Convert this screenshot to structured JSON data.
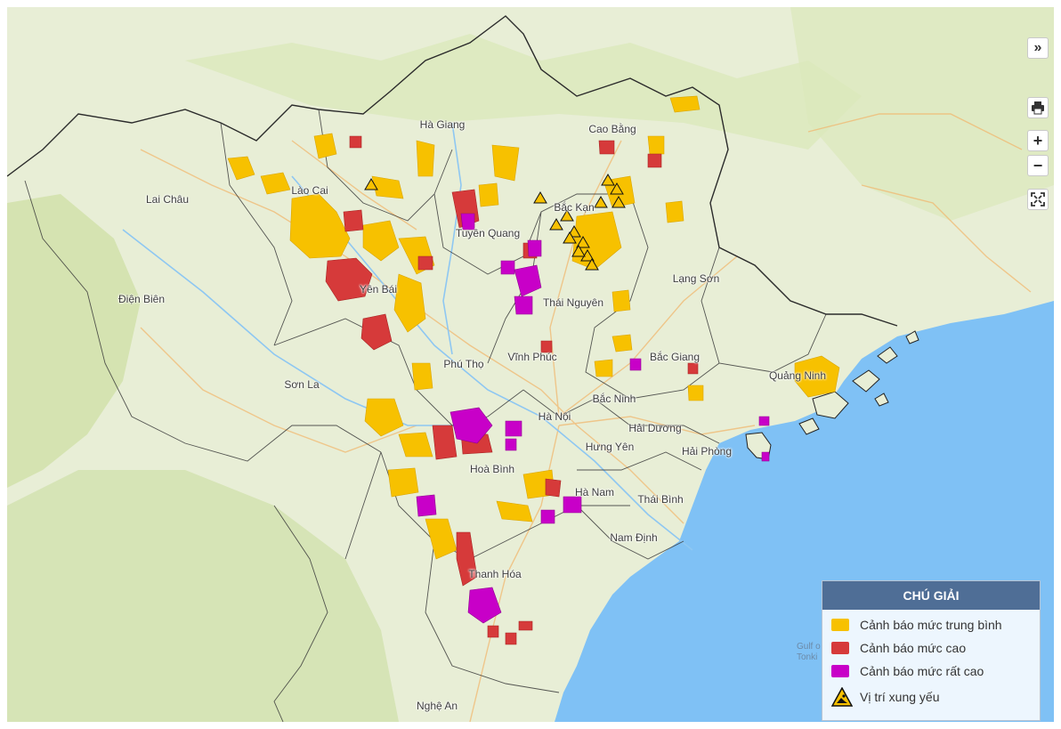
{
  "map": {
    "places": [
      {
        "name": "Hà Giang"
      },
      {
        "name": "Cao Bằng"
      },
      {
        "name": "Lai Châu"
      },
      {
        "name": "Lào Cai"
      },
      {
        "name": "Bắc Kạn"
      },
      {
        "name": "Tuyên Quang"
      },
      {
        "name": "Điện Biên"
      },
      {
        "name": "Lạng Sơn"
      },
      {
        "name": "Yên Bái"
      },
      {
        "name": "Thái Nguyên"
      },
      {
        "name": "Phú Thọ"
      },
      {
        "name": "Vĩnh Phúc"
      },
      {
        "name": "Bắc Giang"
      },
      {
        "name": "Quảng Ninh"
      },
      {
        "name": "Sơn La"
      },
      {
        "name": "Bắc Ninh"
      },
      {
        "name": "Hà Nội"
      },
      {
        "name": "Hải Dương"
      },
      {
        "name": "Hưng Yên"
      },
      {
        "name": "Hải Phòng"
      },
      {
        "name": "Hoà Bình"
      },
      {
        "name": "Hà Nam"
      },
      {
        "name": "Thái Bình"
      },
      {
        "name": "Nam Định"
      },
      {
        "name": "Thanh Hóa"
      },
      {
        "name": "Nghệ An"
      }
    ],
    "sea_label": {
      "line1": "Gulf o",
      "line2": "Tonki"
    }
  },
  "controls": {
    "expand_label": "»",
    "zoom_in_label": "+",
    "zoom_out_label": "−"
  },
  "legend": {
    "title": "CHÚ GIẢI",
    "items": [
      {
        "label": "Cảnh báo mức trung bình",
        "color": "#f7c100"
      },
      {
        "label": "Cảnh báo mức cao",
        "color": "#d63a3a"
      },
      {
        "label": "Cảnh báo mức rất cao",
        "color": "#c800c8"
      },
      {
        "label": "Vị trí xung yếu",
        "icon": "landslide-warning-icon"
      }
    ]
  },
  "colors": {
    "land": "#e8eed6",
    "sea": "#7fc1f5",
    "forest": "#cfe0a8",
    "border": "#333333",
    "legend_header": "#4f6e96"
  }
}
